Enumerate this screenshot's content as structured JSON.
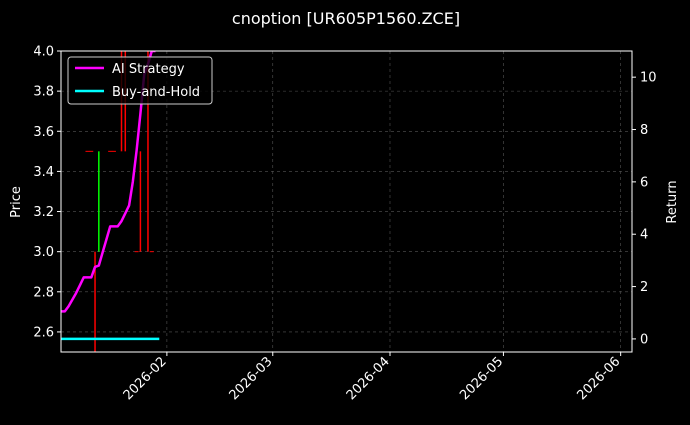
{
  "chart_data": {
    "type": "line",
    "title": "cnoption [UR605P1560.ZCE]",
    "ylabel": "Price",
    "y2label": "Return",
    "xlim": [
      "2026-01-04",
      "2026-06-04"
    ],
    "ylim": [
      2.5,
      4.0
    ],
    "y2lim": [
      -0.5,
      11.0
    ],
    "x_ticks": [
      "2026-02",
      "2026-03",
      "2026-04",
      "2026-05",
      "2026-06"
    ],
    "x_tick_dates": [
      "2026-02-01",
      "2026-03-01",
      "2026-04-01",
      "2026-05-01",
      "2026-06-01"
    ],
    "y_ticks": [
      "2.6",
      "2.8",
      "3.0",
      "3.2",
      "3.4",
      "3.6",
      "3.8",
      "4.0"
    ],
    "y2_ticks": [
      "0",
      "2",
      "4",
      "6",
      "8",
      "10"
    ],
    "grid": true,
    "legend_position": "top-left",
    "series": [
      {
        "name": "AI Strategy",
        "axis": "right",
        "color": "#ff00ff",
        "x": [
          "2026-01-04",
          "2026-01-05",
          "2026-01-06",
          "2026-01-07",
          "2026-01-08",
          "2026-01-09",
          "2026-01-10",
          "2026-01-11",
          "2026-01-12",
          "2026-01-13",
          "2026-01-14",
          "2026-01-15",
          "2026-01-16",
          "2026-01-17",
          "2026-01-18",
          "2026-01-19",
          "2026-01-20",
          "2026-01-21",
          "2026-01-22",
          "2026-01-23",
          "2026-01-24",
          "2026-01-25",
          "2026-01-26",
          "2026-01-27",
          "2026-01-28",
          "2026-01-29"
        ],
        "values": [
          1.05,
          1.05,
          1.25,
          1.5,
          1.75,
          2.05,
          2.35,
          2.35,
          2.35,
          2.75,
          2.8,
          3.3,
          3.8,
          4.3,
          4.3,
          4.3,
          4.5,
          4.8,
          5.1,
          6.0,
          7.2,
          8.6,
          10.1,
          10.5,
          11.0,
          11.0
        ]
      },
      {
        "name": "Buy-and-Hold",
        "axis": "right",
        "color": "#00ffff",
        "x": [
          "2026-01-04",
          "2026-01-30"
        ],
        "values": [
          0,
          0
        ]
      }
    ],
    "price_bars": [
      {
        "date": "2026-01-13",
        "low": 2.5,
        "high": 3.0,
        "color": "#ff0000"
      },
      {
        "date": "2026-01-14",
        "low": 3.0,
        "high": 3.5,
        "color": "#00ff00"
      },
      {
        "date": "2026-01-20",
        "low": 3.5,
        "high": 4.0,
        "color": "#ff0000"
      },
      {
        "date": "2026-01-21",
        "low": 3.5,
        "high": 4.0,
        "color": "#ff0000"
      },
      {
        "date": "2026-01-25",
        "low": 3.0,
        "high": 3.5,
        "color": "#ff0000"
      },
      {
        "date": "2026-01-27",
        "low": 3.0,
        "high": 4.0,
        "color": "#ff0000"
      }
    ],
    "price_ticks": [
      {
        "date": "2026-01-11",
        "value": 3.5,
        "color": "#ff0000"
      },
      {
        "date": "2026-01-12",
        "value": 3.5,
        "color": "#ff0000"
      },
      {
        "date": "2026-01-17",
        "value": 3.5,
        "color": "#ff0000"
      },
      {
        "date": "2026-01-18",
        "value": 3.5,
        "color": "#ff0000"
      },
      {
        "date": "2026-01-24",
        "value": 3.0,
        "color": "#ff0000"
      },
      {
        "date": "2026-01-28",
        "value": 3.0,
        "color": "#ff0000"
      }
    ]
  }
}
